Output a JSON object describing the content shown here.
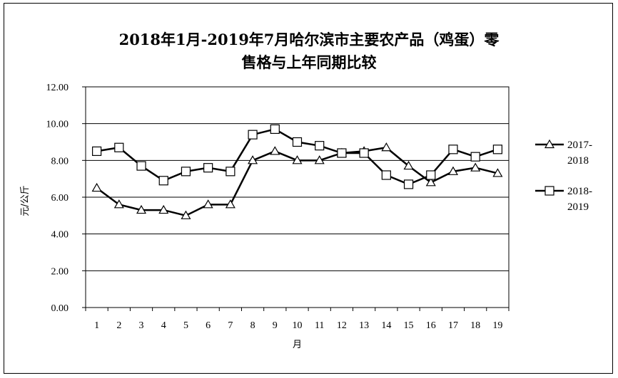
{
  "chart_data": {
    "type": "line",
    "title_line1": "2018年1月-2019年7月哈尔滨市主要农产品（鸡蛋）零",
    "title_line2": "售格与上年同期比较",
    "xlabel": "月",
    "ylabel": "元/公斤",
    "categories": [
      "1",
      "2",
      "3",
      "4",
      "5",
      "6",
      "7",
      "8",
      "9",
      "10",
      "11",
      "12",
      "13",
      "14",
      "15",
      "16",
      "17",
      "18",
      "19"
    ],
    "ylim": [
      0,
      12
    ],
    "yticks": [
      "0.00",
      "2.00",
      "4.00",
      "6.00",
      "8.00",
      "10.00",
      "12.00"
    ],
    "grid": true,
    "legend_position": "right",
    "series": [
      {
        "name_line1": "2017-",
        "name_line2": "2018",
        "marker": "triangle",
        "values": [
          6.5,
          5.6,
          5.3,
          5.3,
          5.0,
          5.6,
          5.6,
          8.0,
          8.5,
          8.0,
          8.0,
          8.4,
          8.5,
          8.7,
          7.7,
          6.8,
          7.4,
          7.6,
          7.3
        ]
      },
      {
        "name_line1": "2018-",
        "name_line2": "2019",
        "marker": "square",
        "values": [
          8.5,
          8.7,
          7.7,
          6.9,
          7.4,
          7.6,
          7.4,
          9.4,
          9.7,
          9.0,
          8.8,
          8.4,
          8.4,
          7.2,
          6.7,
          7.2,
          8.6,
          8.2,
          8.6
        ]
      }
    ]
  }
}
